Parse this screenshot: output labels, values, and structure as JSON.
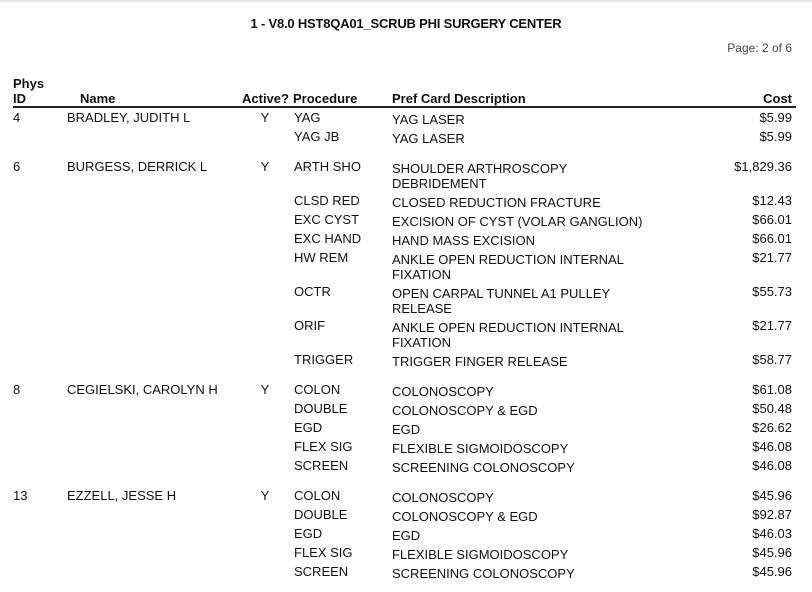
{
  "report_title": "1 - V8.0 HST8QA01_SCRUB PHI SURGERY CENTER",
  "page_label": "Page: 2 of 6",
  "headers": {
    "phys": "Phys",
    "id": "ID",
    "name": "Name",
    "active": "Active?",
    "procedure": "Procedure",
    "description": "Pref Card Description",
    "cost": "Cost"
  },
  "groups": [
    {
      "id": "4",
      "name": "BRADLEY, JUDITH L",
      "active": "Y",
      "rows": [
        {
          "procedure": "YAG",
          "description": "YAG LASER",
          "cost": "$5.99"
        },
        {
          "procedure": "YAG JB",
          "description": "YAG LASER",
          "cost": "$5.99"
        }
      ]
    },
    {
      "id": "6",
      "name": "BURGESS, DERRICK L",
      "active": "Y",
      "rows": [
        {
          "procedure": "ARTH SHO",
          "description": "SHOULDER ARTHROSCOPY DEBRIDEMENT",
          "cost": "$1,829.36"
        },
        {
          "procedure": "CLSD RED",
          "description": "CLOSED REDUCTION FRACTURE",
          "cost": "$12.43"
        },
        {
          "procedure": "EXC CYST",
          "description": "EXCISION OF CYST (VOLAR GANGLION)",
          "cost": "$66.01"
        },
        {
          "procedure": "EXC HAND",
          "description": "HAND MASS EXCISION",
          "cost": "$66.01"
        },
        {
          "procedure": "HW REM",
          "description": "ANKLE OPEN REDUCTION INTERNAL FIXATION",
          "cost": "$21.77"
        },
        {
          "procedure": "OCTR",
          "description": "OPEN CARPAL TUNNEL A1 PULLEY RELEASE",
          "cost": "$55.73"
        },
        {
          "procedure": "ORIF",
          "description": "ANKLE OPEN REDUCTION INTERNAL FIXATION",
          "cost": "$21.77"
        },
        {
          "procedure": "TRIGGER",
          "description": "TRIGGER FINGER RELEASE",
          "cost": "$58.77"
        }
      ]
    },
    {
      "id": "8",
      "name": "CEGIELSKI, CAROLYN H",
      "active": "Y",
      "rows": [
        {
          "procedure": "COLON",
          "description": "COLONOSCOPY",
          "cost": "$61.08"
        },
        {
          "procedure": "DOUBLE",
          "description": "COLONOSCOPY & EGD",
          "cost": "$50.48"
        },
        {
          "procedure": "EGD",
          "description": "EGD",
          "cost": "$26.62"
        },
        {
          "procedure": "FLEX SIG",
          "description": "FLEXIBLE SIGMOIDOSCOPY",
          "cost": "$46.08"
        },
        {
          "procedure": "SCREEN",
          "description": "SCREENING COLONOSCOPY",
          "cost": "$46.08"
        }
      ]
    },
    {
      "id": "13",
      "name": "EZZELL, JESSE H",
      "active": "Y",
      "rows": [
        {
          "procedure": "COLON",
          "description": "COLONOSCOPY",
          "cost": "$45.96"
        },
        {
          "procedure": "DOUBLE",
          "description": "COLONOSCOPY & EGD",
          "cost": "$92.87"
        },
        {
          "procedure": "EGD",
          "description": "EGD",
          "cost": "$46.03"
        },
        {
          "procedure": "FLEX SIG",
          "description": "FLEXIBLE SIGMOIDOSCOPY",
          "cost": "$45.96"
        },
        {
          "procedure": "SCREEN",
          "description": "SCREENING COLONOSCOPY",
          "cost": "$45.96"
        }
      ]
    }
  ]
}
